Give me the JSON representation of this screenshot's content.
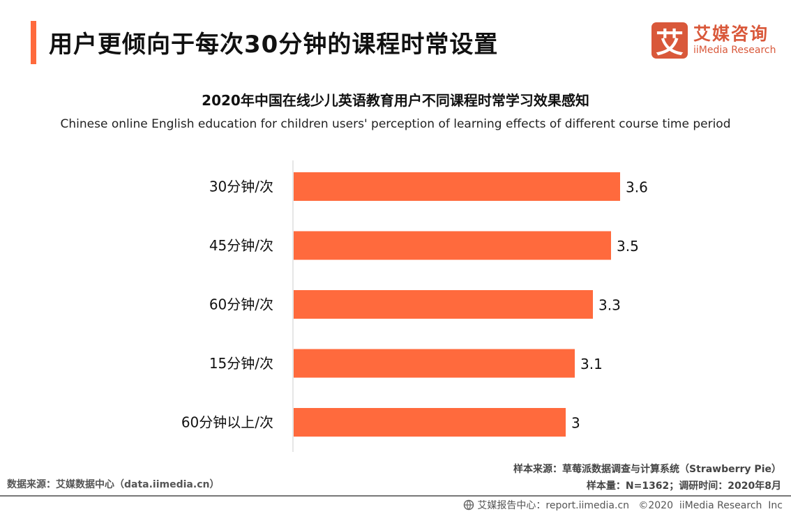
{
  "header": {
    "title": "用户更倾向于每次30分钟的课程时常设置",
    "logo_cn": "艾媒咨询",
    "logo_en": "iiMedia Research",
    "logo_mark": "艾"
  },
  "colors": {
    "bar": "#ff6a3d",
    "accent": "#ff6a3d",
    "logo": "#d9583a"
  },
  "chart_data": {
    "type": "bar",
    "orientation": "horizontal",
    "title": "2020年中国在线少儿英语教育用户不同课程时常学习效果感知",
    "subtitle": "Chinese online English education for children users' perception of learning effects of different course time period",
    "categories": [
      "30分钟/次",
      "45分钟/次",
      "60分钟/次",
      "15分钟/次",
      "60分钟以上/次"
    ],
    "values": [
      3.6,
      3.5,
      3.3,
      3.1,
      3
    ],
    "value_labels": [
      "3.6",
      "3.5",
      "3.3",
      "3.1",
      "3"
    ],
    "xlim": [
      0,
      3.6
    ],
    "grid": false
  },
  "footer": {
    "source_left": "数据来源：艾媒数据中心（data.iimedia.cn）",
    "sample_source": "样本来源：草莓派数据调查与计算系统（Strawberry Pie）",
    "sample_size": "样本量：N=1362；调研时间：2020年8月",
    "report": "艾媒报告中心：report.iimedia.cn   ©2020  iiMedia Research  Inc"
  }
}
